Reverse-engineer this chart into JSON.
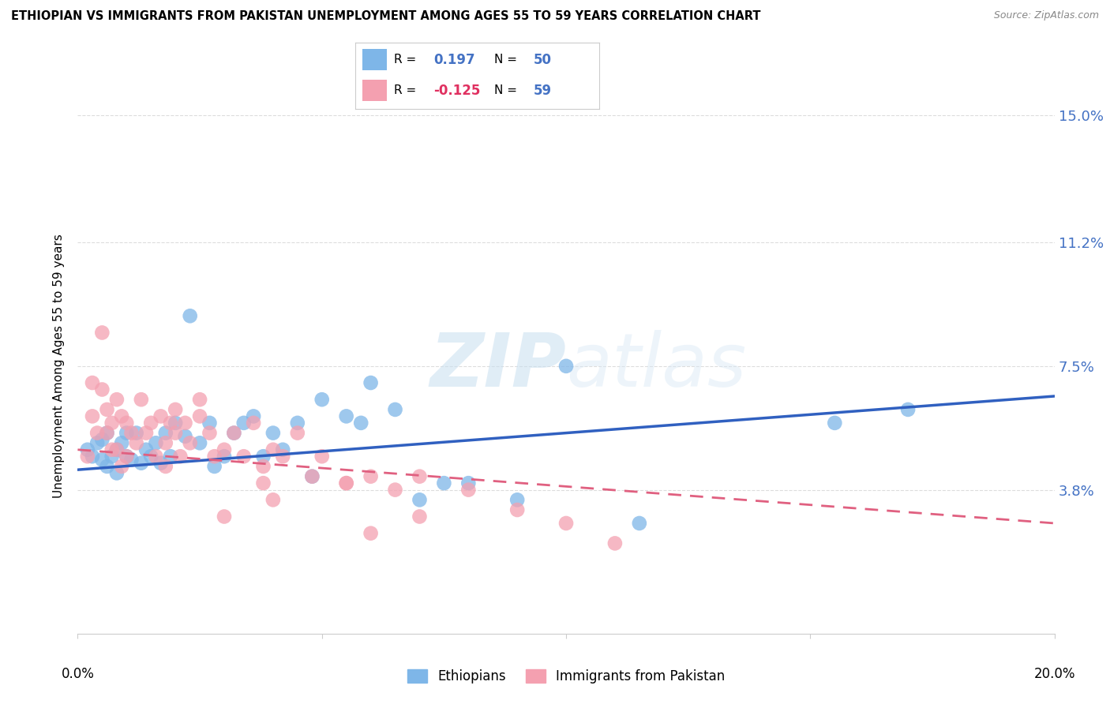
{
  "title": "ETHIOPIAN VS IMMIGRANTS FROM PAKISTAN UNEMPLOYMENT AMONG AGES 55 TO 59 YEARS CORRELATION CHART",
  "source": "Source: ZipAtlas.com",
  "ylabel": "Unemployment Among Ages 55 to 59 years",
  "xlim": [
    0.0,
    0.2
  ],
  "ylim": [
    -0.005,
    0.155
  ],
  "yticks": [
    0.038,
    0.075,
    0.112,
    0.15
  ],
  "ytick_labels": [
    "3.8%",
    "7.5%",
    "11.2%",
    "15.0%"
  ],
  "xticks": [
    0.0,
    0.05,
    0.1,
    0.15,
    0.2
  ],
  "ethiopian_R": 0.197,
  "ethiopian_N": 50,
  "pakistan_R": -0.125,
  "pakistan_N": 59,
  "ethiopian_color": "#7EB6E8",
  "pakistan_color": "#F4A0B0",
  "trendline_ethiopian_color": "#3060C0",
  "trendline_pakistan_color": "#E06080",
  "watermark_zip": "ZIP",
  "watermark_atlas": "atlas",
  "background_color": "#FFFFFF",
  "grid_color": "#DDDDDD",
  "eth_trend_start": 0.044,
  "eth_trend_end": 0.066,
  "pak_trend_start": 0.05,
  "pak_trend_end": 0.028,
  "ethiopian_points_x": [
    0.002,
    0.003,
    0.004,
    0.005,
    0.005,
    0.006,
    0.006,
    0.007,
    0.008,
    0.008,
    0.009,
    0.01,
    0.01,
    0.011,
    0.012,
    0.013,
    0.014,
    0.015,
    0.016,
    0.017,
    0.018,
    0.019,
    0.02,
    0.022,
    0.023,
    0.025,
    0.027,
    0.028,
    0.03,
    0.032,
    0.034,
    0.036,
    0.038,
    0.04,
    0.042,
    0.045,
    0.048,
    0.05,
    0.055,
    0.058,
    0.06,
    0.065,
    0.07,
    0.075,
    0.08,
    0.09,
    0.1,
    0.115,
    0.155,
    0.17
  ],
  "ethiopian_points_y": [
    0.05,
    0.048,
    0.052,
    0.047,
    0.053,
    0.045,
    0.055,
    0.048,
    0.05,
    0.043,
    0.052,
    0.048,
    0.055,
    0.047,
    0.055,
    0.046,
    0.05,
    0.048,
    0.052,
    0.046,
    0.055,
    0.048,
    0.058,
    0.054,
    0.09,
    0.052,
    0.058,
    0.045,
    0.048,
    0.055,
    0.058,
    0.06,
    0.048,
    0.055,
    0.05,
    0.058,
    0.042,
    0.065,
    0.06,
    0.058,
    0.07,
    0.062,
    0.035,
    0.04,
    0.04,
    0.035,
    0.075,
    0.028,
    0.058,
    0.062
  ],
  "pakistan_points_x": [
    0.002,
    0.003,
    0.003,
    0.004,
    0.005,
    0.005,
    0.006,
    0.006,
    0.007,
    0.007,
    0.008,
    0.008,
    0.009,
    0.009,
    0.01,
    0.01,
    0.011,
    0.012,
    0.013,
    0.014,
    0.015,
    0.016,
    0.017,
    0.018,
    0.019,
    0.02,
    0.021,
    0.022,
    0.023,
    0.025,
    0.027,
    0.028,
    0.03,
    0.032,
    0.034,
    0.036,
    0.038,
    0.04,
    0.042,
    0.045,
    0.048,
    0.05,
    0.055,
    0.06,
    0.065,
    0.07,
    0.08,
    0.09,
    0.1,
    0.11,
    0.055,
    0.038,
    0.02,
    0.025,
    0.018,
    0.03,
    0.04,
    0.06,
    0.07
  ],
  "pakistan_points_y": [
    0.048,
    0.07,
    0.06,
    0.055,
    0.085,
    0.068,
    0.062,
    0.055,
    0.058,
    0.05,
    0.065,
    0.05,
    0.06,
    0.045,
    0.058,
    0.048,
    0.055,
    0.052,
    0.065,
    0.055,
    0.058,
    0.048,
    0.06,
    0.052,
    0.058,
    0.055,
    0.048,
    0.058,
    0.052,
    0.06,
    0.055,
    0.048,
    0.05,
    0.055,
    0.048,
    0.058,
    0.045,
    0.05,
    0.048,
    0.055,
    0.042,
    0.048,
    0.04,
    0.042,
    0.038,
    0.042,
    0.038,
    0.032,
    0.028,
    0.022,
    0.04,
    0.04,
    0.062,
    0.065,
    0.045,
    0.03,
    0.035,
    0.025,
    0.03
  ]
}
